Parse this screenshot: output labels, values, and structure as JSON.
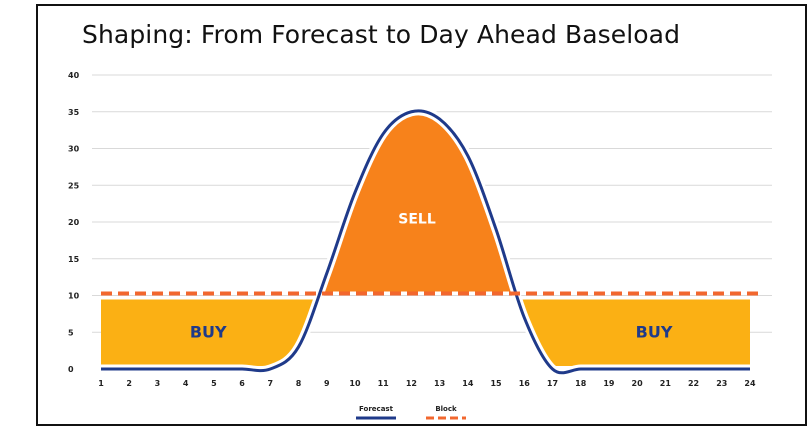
{
  "title": "Shaping: From Forecast to Day Ahead Baseload",
  "colors": {
    "forecast": "#1f3a8a",
    "block": "#f2672e",
    "sell_fill": "#f7821b",
    "buy_fill": "#fbb014",
    "grid": "#d9d9d9",
    "label": "#ffffff",
    "buy_label": "#1f3a8a"
  },
  "chart_data": {
    "type": "area",
    "title": "Shaping: From Forecast to Day Ahead Baseload",
    "xlabel": "",
    "ylabel": "",
    "x": [
      1,
      2,
      3,
      4,
      5,
      6,
      7,
      8,
      9,
      10,
      11,
      12,
      13,
      14,
      15,
      16,
      17,
      18,
      19,
      20,
      21,
      22,
      23,
      24
    ],
    "xlim": [
      1,
      24
    ],
    "ylim": [
      0,
      40
    ],
    "yticks": [
      0,
      5,
      10,
      15,
      20,
      25,
      30,
      35,
      40
    ],
    "grid": true,
    "legend_position": "bottom",
    "series": [
      {
        "name": "Forecast",
        "style": "line",
        "values": [
          0,
          0,
          0,
          0,
          0,
          0,
          0,
          3,
          13,
          24,
          32,
          35,
          34,
          29,
          19,
          7,
          0,
          0,
          0,
          0,
          0,
          0,
          0,
          0
        ]
      },
      {
        "name": "Block",
        "style": "dashed",
        "values": [
          10,
          10,
          10,
          10,
          10,
          10,
          10,
          10,
          10,
          10,
          10,
          10,
          10,
          10,
          10,
          10,
          10,
          10,
          10,
          10,
          10,
          10,
          10,
          10
        ]
      }
    ],
    "annotations": [
      {
        "text": "SELL",
        "x": 12.2,
        "y": 20.5
      },
      {
        "text": "BUY",
        "x": 4.8,
        "y": 5
      },
      {
        "text": "BUY",
        "x": 20.6,
        "y": 5
      }
    ]
  }
}
